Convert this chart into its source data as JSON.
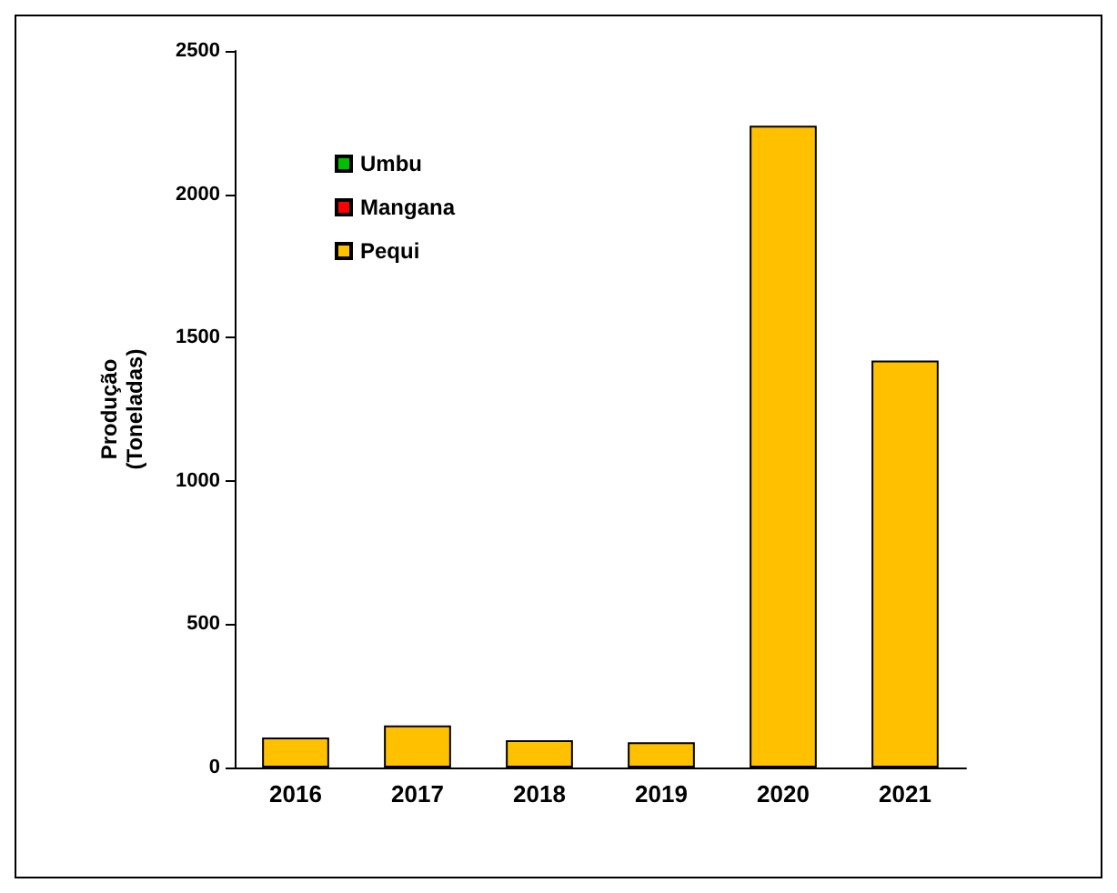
{
  "chart_data": {
    "type": "bar",
    "ylabel": "Produção\n(Toneladas)",
    "categories": [
      "2016",
      "2017",
      "2018",
      "2019",
      "2020",
      "2021"
    ],
    "stacked": true,
    "series": [
      {
        "name": "Pequi",
        "color": "#ffc000",
        "values": [
          105,
          147,
          95,
          88,
          2239,
          1420
        ]
      },
      {
        "name": "Mangana",
        "color": "#ff0000",
        "values": [
          null,
          null,
          null,
          null,
          null,
          null
        ]
      },
      {
        "name": "Umbu",
        "color": "#00c000",
        "values": [
          null,
          null,
          null,
          null,
          null,
          null
        ]
      }
    ],
    "ylim": [
      0,
      2500
    ],
    "yticks": [
      0,
      500,
      1000,
      1500,
      2000,
      2500
    ],
    "grid": false,
    "legend": "top left"
  }
}
